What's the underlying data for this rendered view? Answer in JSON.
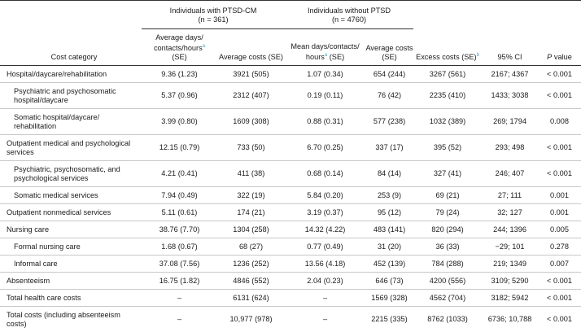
{
  "header": {
    "group1_title": "Individuals with PTSD-CM",
    "group1_n": "(n = 361)",
    "group2_title": "Individuals without PTSD",
    "group2_n": "(n = 4760)",
    "col_category": "Cost category",
    "col_avg_days": "Average days/ contacts/hours",
    "col_avg_days_se": "(SE)",
    "col_avg_costs_1": "Average costs (SE)",
    "col_mean_days": "Mean days/contacts/ hours",
    "col_mean_days_se": "(SE)",
    "col_avg_costs_2": "Average costs (SE)",
    "col_excess": "Excess costs (SE)",
    "col_ci": "95% CI",
    "col_p": "P",
    "col_p_rest": " value",
    "footnote_mark_a": "a",
    "footnote_mark_b": "b"
  },
  "rows": [
    {
      "category": "Hospital/daycare/rehabilitation",
      "indent": false,
      "tall": false,
      "c1": "9.36 (1.23)",
      "c2": "3921 (505)",
      "c3": "1.07 (0.34)",
      "c4": "654 (244)",
      "c5": "3267 (561)",
      "c6": "2167; 4367",
      "c7": "< 0.001"
    },
    {
      "category": "Psychiatric and psychosomatic hospital/daycare",
      "indent": true,
      "tall": true,
      "c1": "5.37 (0.96)",
      "c2": "2312 (407)",
      "c3": "0.19 (0.11)",
      "c4": "76 (42)",
      "c5": "2235 (410)",
      "c6": "1433; 3038",
      "c7": "< 0.001"
    },
    {
      "category": "Somatic hospital/daycare/ rehabilitation",
      "indent": true,
      "tall": true,
      "c1": "3.99 (0.80)",
      "c2": "1609 (308)",
      "c3": "0.88 (0.31)",
      "c4": "577 (238)",
      "c5": "1032 (389)",
      "c6": "269; 1794",
      "c7": "0.008"
    },
    {
      "category": "Outpatient medical and psychological services",
      "indent": false,
      "tall": true,
      "c1": "12.15 (0.79)",
      "c2": "733 (50)",
      "c3": "6.70 (0.25)",
      "c4": "337 (17)",
      "c5": "395 (52)",
      "c6": "293; 498",
      "c7": "< 0.001"
    },
    {
      "category": "Psychiatric, psychosomatic, and psychological services",
      "indent": true,
      "tall": true,
      "c1": "4.21 (0.41)",
      "c2": "411 (38)",
      "c3": "0.68 (0.14)",
      "c4": "84 (14)",
      "c5": "327 (41)",
      "c6": "246; 407",
      "c7": "< 0.001"
    },
    {
      "category": "Somatic medical services",
      "indent": true,
      "tall": false,
      "c1": "7.94 (0.49)",
      "c2": "322 (19)",
      "c3": "5.84 (0.20)",
      "c4": "253 (9)",
      "c5": "69 (21)",
      "c6": "27; 111",
      "c7": "0.001"
    },
    {
      "category": "Outpatient nonmedical services",
      "indent": false,
      "tall": false,
      "c1": "5.11 (0.61)",
      "c2": "174 (21)",
      "c3": "3.19 (0.37)",
      "c4": "95 (12)",
      "c5": "79 (24)",
      "c6": "32; 127",
      "c7": "0.001"
    },
    {
      "category": "Nursing care",
      "indent": false,
      "tall": false,
      "c1": "38.76 (7.70)",
      "c2": "1304 (258)",
      "c3": "14.32 (4.22)",
      "c4": "483 (141)",
      "c5": "820 (294)",
      "c6": "244; 1396",
      "c7": "0.005"
    },
    {
      "category": "Formal nursing care",
      "indent": true,
      "tall": false,
      "c1": "1.68 (0.67)",
      "c2": "68 (27)",
      "c3": "0.77 (0.49)",
      "c4": "31 (20)",
      "c5": "36 (33)",
      "c6": "−29; 101",
      "c7": "0.278"
    },
    {
      "category": "Informal care",
      "indent": true,
      "tall": false,
      "c1": "37.08 (7.56)",
      "c2": "1236 (252)",
      "c3": "13.56 (4.18)",
      "c4": "452 (139)",
      "c5": "784 (288)",
      "c6": "219; 1349",
      "c7": "0.007"
    },
    {
      "category": "Absenteeism",
      "indent": false,
      "tall": false,
      "c1": "16.75 (1.82)",
      "c2": "4846 (552)",
      "c3": "2.04 (0.23)",
      "c4": "646 (73)",
      "c5": "4200 (556)",
      "c6": "3109; 5290",
      "c7": "< 0.001"
    },
    {
      "category": "Total health care costs",
      "indent": false,
      "tall": false,
      "c1": "–",
      "c2": "6131 (624)",
      "c3": "–",
      "c4": "1569 (328)",
      "c5": "4562 (704)",
      "c6": "3182; 5942",
      "c7": "< 0.001"
    },
    {
      "category": "Total costs (including absenteeism costs)",
      "indent": false,
      "tall": true,
      "c1": "–",
      "c2": "10,977 (978)",
      "c3": "–",
      "c4": "2215 (335)",
      "c5": "8762 (1033)",
      "c6": "6736; 10,788",
      "c7": "< 0.001"
    }
  ]
}
